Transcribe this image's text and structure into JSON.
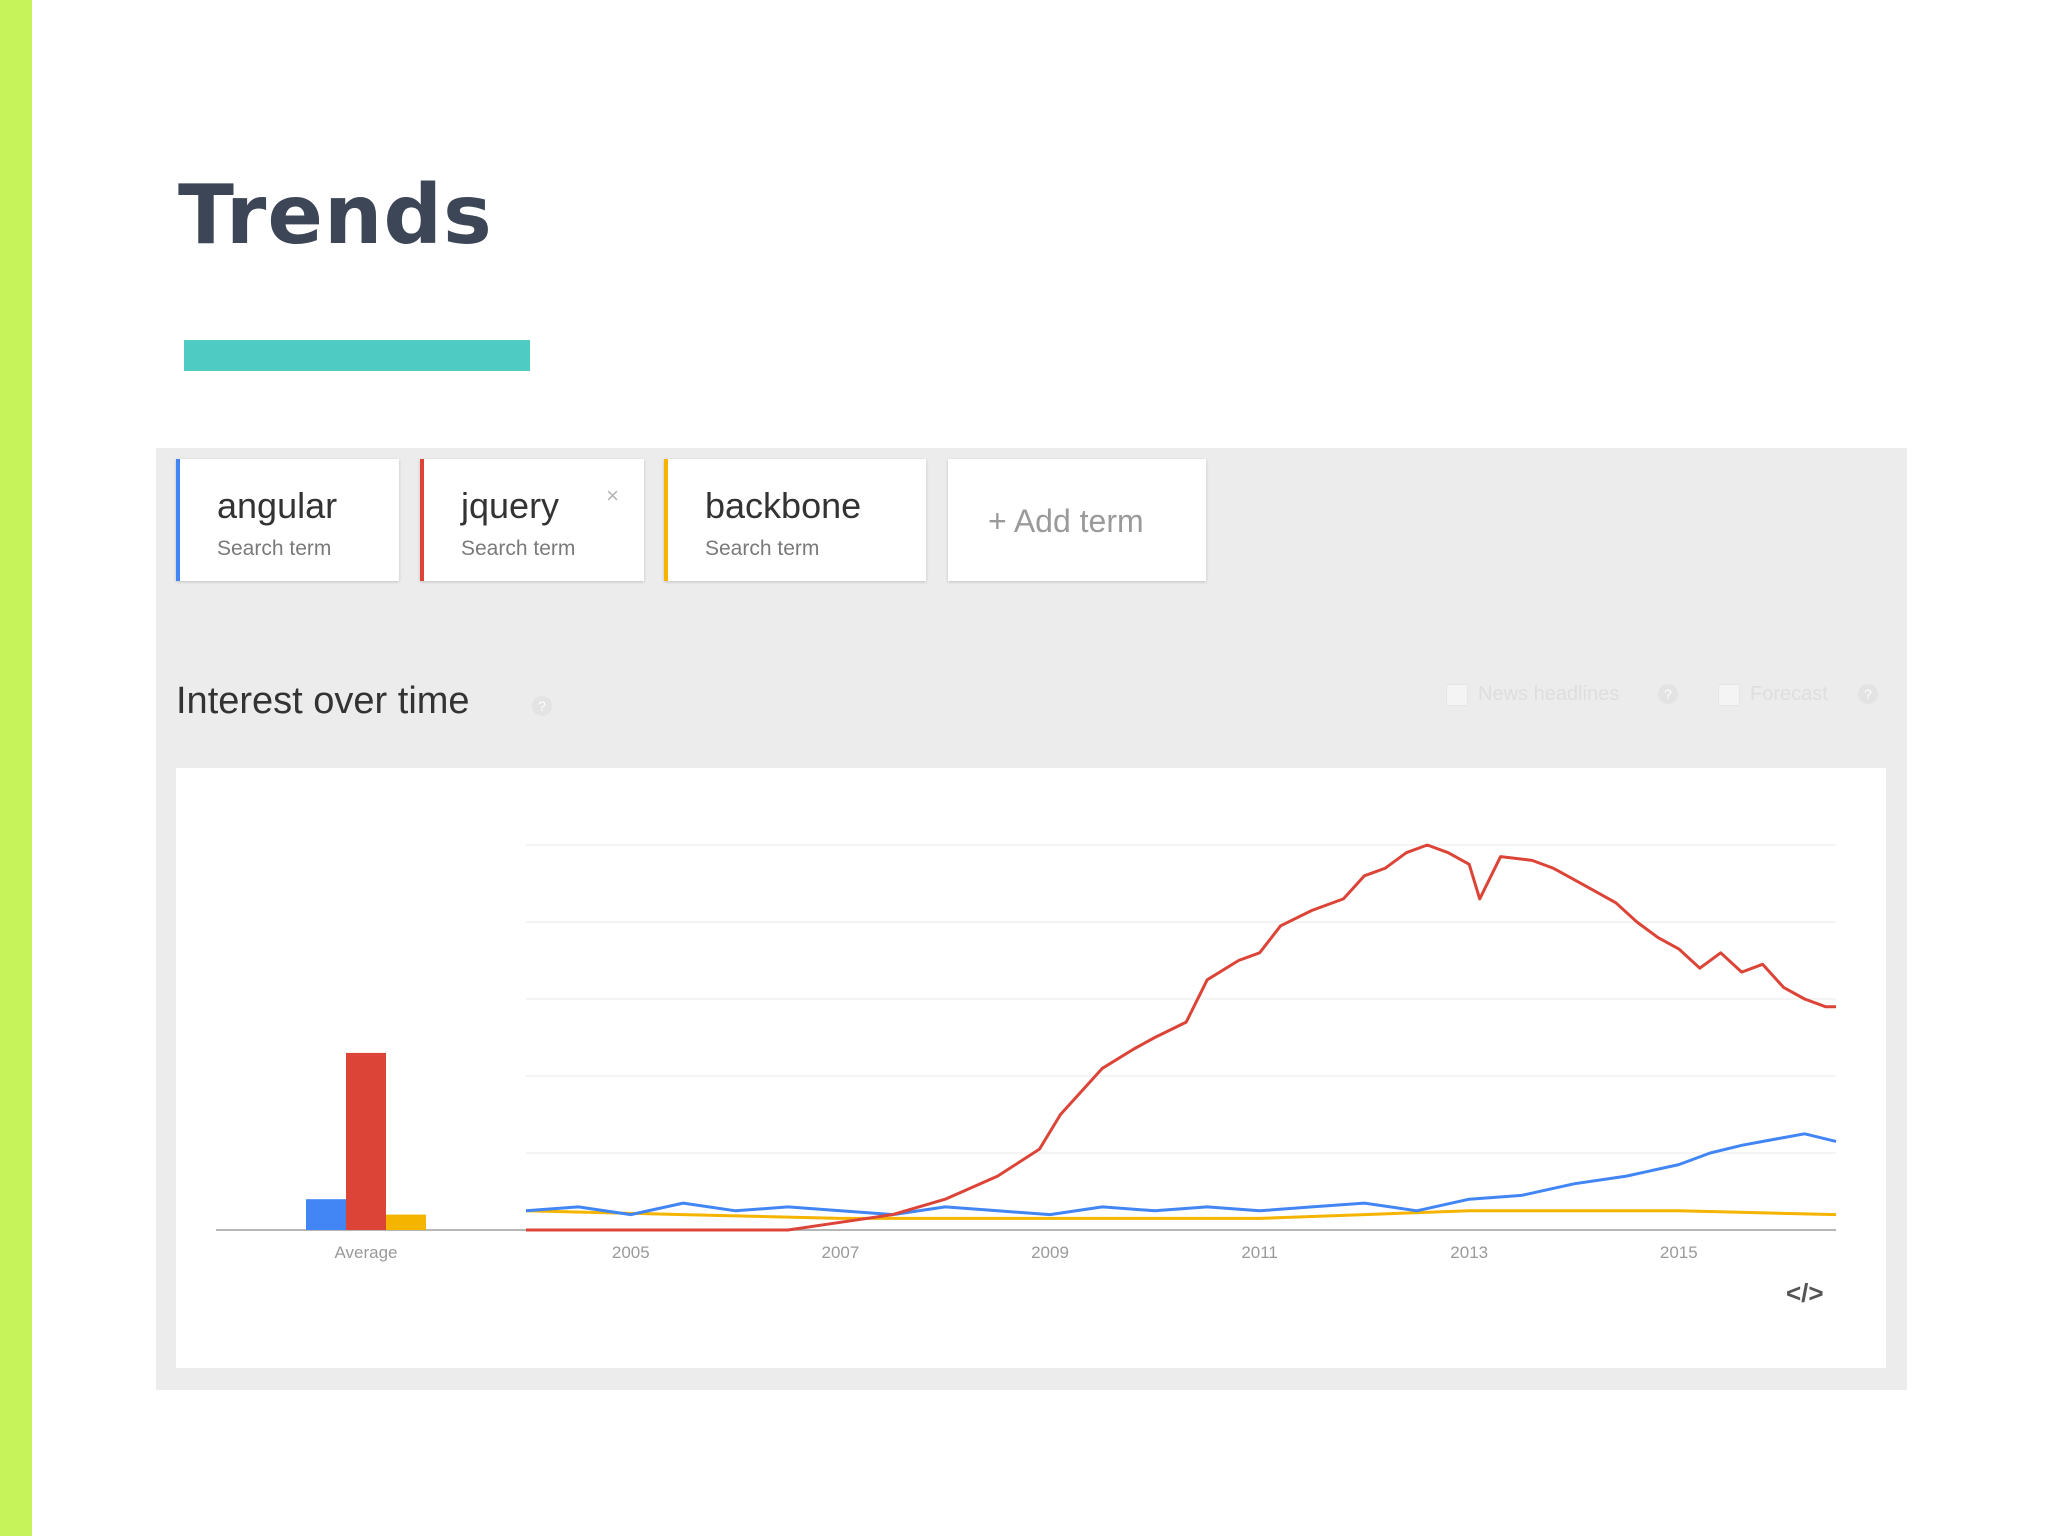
{
  "slide": {
    "title": "Trends"
  },
  "terms": [
    {
      "name": "angular",
      "sub": "Search term",
      "color": "#4285f4",
      "removable": false
    },
    {
      "name": "jquery",
      "sub": "Search term",
      "color": "#db4437",
      "removable": true
    },
    {
      "name": "backbone",
      "sub": "Search term",
      "color": "#f4b400",
      "removable": false
    }
  ],
  "add_term": {
    "label": "+ Add term"
  },
  "section": {
    "title": "Interest over time",
    "help": "?",
    "options": [
      {
        "label": "News headlines"
      },
      {
        "label": "Forecast"
      }
    ]
  },
  "embed": {
    "label": "</>"
  },
  "chart_data": {
    "type": "line",
    "title": "Interest over time",
    "xlabel": "",
    "ylabel": "",
    "ylim": [
      0,
      100
    ],
    "grid": true,
    "x_ticks": [
      "2005",
      "2007",
      "2009",
      "2011",
      "2013",
      "2015"
    ],
    "x_range": [
      2004.0,
      2016.5
    ],
    "average": {
      "label": "Average",
      "values": [
        {
          "series": "angular",
          "value": 8
        },
        {
          "series": "jquery",
          "value": 46
        },
        {
          "series": "backbone",
          "value": 4
        }
      ]
    },
    "series": [
      {
        "name": "angular",
        "color": "#4285f4",
        "points": [
          [
            2004.0,
            5
          ],
          [
            2004.5,
            6
          ],
          [
            2005.0,
            4
          ],
          [
            2005.5,
            7
          ],
          [
            2006.0,
            5
          ],
          [
            2006.5,
            6
          ],
          [
            2007.0,
            5
          ],
          [
            2007.5,
            4
          ],
          [
            2008.0,
            6
          ],
          [
            2008.5,
            5
          ],
          [
            2009.0,
            4
          ],
          [
            2009.5,
            6
          ],
          [
            2010.0,
            5
          ],
          [
            2010.5,
            6
          ],
          [
            2011.0,
            5
          ],
          [
            2011.5,
            6
          ],
          [
            2012.0,
            7
          ],
          [
            2012.5,
            5
          ],
          [
            2013.0,
            8
          ],
          [
            2013.5,
            9
          ],
          [
            2014.0,
            12
          ],
          [
            2014.5,
            14
          ],
          [
            2015.0,
            17
          ],
          [
            2015.3,
            20
          ],
          [
            2015.6,
            22
          ],
          [
            2016.0,
            24
          ],
          [
            2016.2,
            25
          ],
          [
            2016.5,
            23
          ]
        ]
      },
      {
        "name": "jquery",
        "color": "#db4437",
        "points": [
          [
            2004.0,
            0
          ],
          [
            2006.5,
            0
          ],
          [
            2007.0,
            2
          ],
          [
            2007.5,
            4
          ],
          [
            2008.0,
            8
          ],
          [
            2008.5,
            14
          ],
          [
            2008.9,
            21
          ],
          [
            2009.1,
            30
          ],
          [
            2009.5,
            42
          ],
          [
            2009.8,
            47
          ],
          [
            2010.0,
            50
          ],
          [
            2010.3,
            54
          ],
          [
            2010.5,
            65
          ],
          [
            2010.8,
            70
          ],
          [
            2011.0,
            72
          ],
          [
            2011.2,
            79
          ],
          [
            2011.5,
            83
          ],
          [
            2011.8,
            86
          ],
          [
            2012.0,
            92
          ],
          [
            2012.2,
            94
          ],
          [
            2012.4,
            98
          ],
          [
            2012.6,
            100
          ],
          [
            2012.8,
            98
          ],
          [
            2013.0,
            95
          ],
          [
            2013.1,
            86
          ],
          [
            2013.3,
            97
          ],
          [
            2013.6,
            96
          ],
          [
            2013.8,
            94
          ],
          [
            2014.0,
            91
          ],
          [
            2014.2,
            88
          ],
          [
            2014.4,
            85
          ],
          [
            2014.6,
            80
          ],
          [
            2014.8,
            76
          ],
          [
            2015.0,
            73
          ],
          [
            2015.2,
            68
          ],
          [
            2015.4,
            72
          ],
          [
            2015.6,
            67
          ],
          [
            2015.8,
            69
          ],
          [
            2016.0,
            63
          ],
          [
            2016.2,
            60
          ],
          [
            2016.4,
            58
          ],
          [
            2016.5,
            58
          ]
        ]
      },
      {
        "name": "backbone",
        "color": "#f4b400",
        "points": [
          [
            2004.0,
            5
          ],
          [
            2005.5,
            4
          ],
          [
            2007.0,
            3
          ],
          [
            2008.5,
            3
          ],
          [
            2010.0,
            3
          ],
          [
            2011.0,
            3
          ],
          [
            2012.0,
            4
          ],
          [
            2013.0,
            5
          ],
          [
            2014.0,
            5
          ],
          [
            2015.0,
            5
          ],
          [
            2016.5,
            4
          ]
        ]
      }
    ]
  }
}
